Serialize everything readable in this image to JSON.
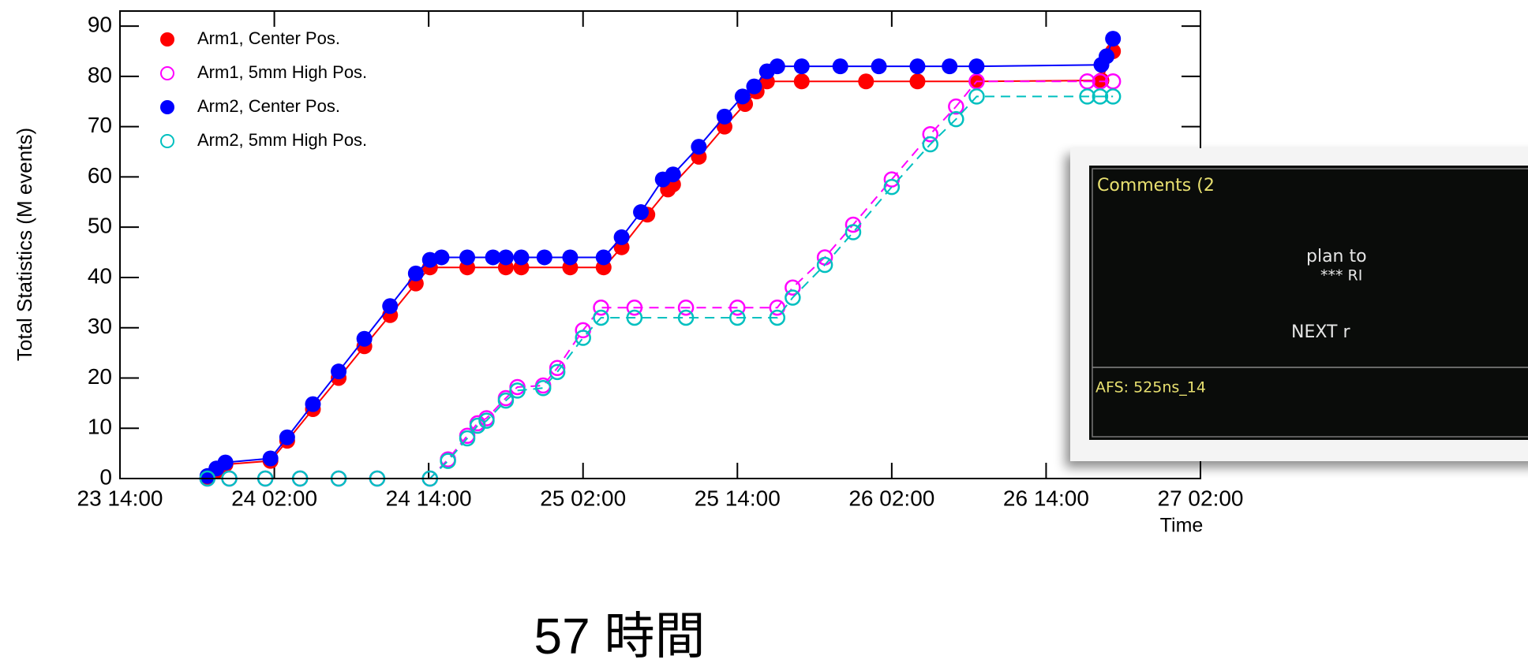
{
  "chart_data": {
    "type": "scatter",
    "y_label": "Total Statistics (M events)",
    "x_label": "Time",
    "xlim": [
      14,
      98
    ],
    "xticks": [
      {
        "value": 14,
        "label": "23 14:00"
      },
      {
        "value": 26,
        "label": "24 02:00"
      },
      {
        "value": 38,
        "label": "24 14:00"
      },
      {
        "value": 50,
        "label": "25 02:00"
      },
      {
        "value": 62,
        "label": "25 14:00"
      },
      {
        "value": 74,
        "label": "26 02:00"
      },
      {
        "value": 86,
        "label": "26 14:00"
      },
      {
        "value": 98,
        "label": "27 02:00"
      }
    ],
    "ylim": [
      0,
      93
    ],
    "yticks": [
      0,
      10,
      20,
      30,
      40,
      50,
      60,
      70,
      80,
      90
    ],
    "legend": "top-left",
    "series": [
      {
        "name": "Arm1, Center Pos.",
        "color": "#ff0000",
        "marker": "filled",
        "line_style": "solid",
        "x": [
          20.8,
          21.5,
          22.2,
          25.7,
          27,
          29,
          31,
          33,
          35,
          37,
          38.1,
          41,
          44,
          45.2,
          49,
          51.6,
          53,
          55,
          56.6,
          57,
          59,
          61,
          62.6,
          63.5,
          64.3,
          67,
          72,
          76,
          80.6,
          90.3,
          91.2
        ],
        "values": [
          0,
          1.5,
          2.8,
          3.5,
          7.5,
          13.8,
          20,
          26.3,
          32.5,
          38.8,
          42,
          42,
          42,
          42,
          42,
          42,
          46,
          52.5,
          57.5,
          58.5,
          64,
          70,
          74.5,
          77,
          79,
          79,
          79,
          79,
          79,
          79.2,
          85
        ]
      },
      {
        "name": "Arm1, 5mm High Pos.",
        "color": "#ff00ff",
        "marker": "open",
        "line_style": "dashed",
        "x": [
          20.8,
          22.5,
          25.3,
          28,
          31,
          34,
          38.1,
          39.5,
          41,
          41.8,
          42.5,
          44,
          44.9,
          46.9,
          48,
          50,
          51.4,
          54,
          58,
          62,
          65.1,
          66.3,
          68.8,
          71,
          74,
          77,
          79,
          80.6,
          89.2,
          90.2,
          91.2
        ],
        "values": [
          0,
          0,
          0,
          0,
          0,
          0,
          0,
          3.8,
          8.5,
          11,
          12,
          16,
          18.2,
          18.5,
          22,
          29.5,
          34,
          34,
          34,
          34,
          34,
          38,
          44,
          50.5,
          59.5,
          68.5,
          74,
          79,
          79,
          79,
          79
        ]
      },
      {
        "name": "Arm2, Center Pos.",
        "color": "#0000ff",
        "marker": "filled",
        "line_style": "solid",
        "x": [
          20.8,
          21.5,
          22.2,
          25.7,
          27,
          29,
          31,
          33,
          35,
          37,
          38.1,
          39,
          41,
          43,
          44,
          45.2,
          47,
          49,
          51.6,
          53,
          54.5,
          56.2,
          57,
          59,
          61,
          62.4,
          63.3,
          64.3,
          65.1,
          67,
          70,
          73,
          76,
          78.5,
          80.6,
          90.3,
          90.7,
          91.2
        ],
        "values": [
          0.5,
          2,
          3.2,
          4,
          8.2,
          14.8,
          21.3,
          27.8,
          34.3,
          40.8,
          43.5,
          44,
          44,
          44,
          44,
          44,
          44,
          44,
          44,
          48,
          53,
          59.5,
          60.5,
          66,
          72,
          76,
          78,
          81,
          82,
          82,
          82,
          82,
          82,
          82,
          82,
          82.3,
          84,
          87.5
        ]
      },
      {
        "name": "Arm2, 5mm High Pos.",
        "color": "#00c0c0",
        "marker": "open",
        "line_style": "dashed",
        "x": [
          20.8,
          22.5,
          25.3,
          28,
          31,
          34,
          38.1,
          39.5,
          41,
          41.8,
          42.5,
          44,
          44.9,
          46.9,
          48,
          50,
          51.4,
          54,
          58,
          62,
          65.1,
          66.3,
          68.8,
          71,
          74,
          77,
          79,
          80.6,
          89.2,
          90.2,
          91.2
        ],
        "values": [
          0,
          0,
          0,
          0,
          0,
          0,
          0,
          3.5,
          8,
          10.5,
          11.5,
          15.5,
          17.5,
          18,
          21.2,
          28,
          32,
          32,
          32,
          32,
          32,
          36,
          42.5,
          49,
          58,
          66.5,
          71.5,
          76,
          76,
          76,
          76
        ]
      }
    ]
  },
  "caption": "57 時間",
  "inset": {
    "header": "Comments (2",
    "lines": [
      "plan to",
      "*** RI",
      "NEXT r"
    ],
    "footer": "AFS: 525ns_14"
  }
}
